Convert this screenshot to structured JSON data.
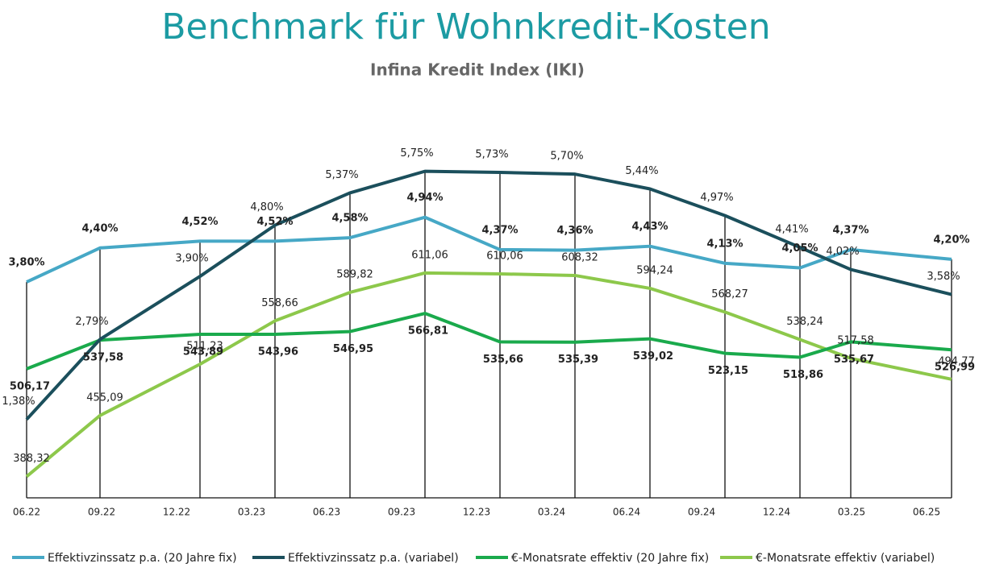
{
  "chart_data": {
    "type": "line",
    "title": "Benchmark für Wohnkredit-Kosten",
    "subtitle": "Infina Kredit Index (IKI)",
    "categories": [
      "06.22",
      "09.22",
      "12.22",
      "03.23",
      "06.23",
      "09.23",
      "12.23",
      "03.24",
      "06.24",
      "09.24",
      "12.24",
      "03.25",
      "06.25"
    ],
    "ylim": [
      0,
      7
    ],
    "y2lim": [
      365,
      800
    ],
    "series": [
      {
        "name": "Effektivzinssatz p.a. (20 Jahre fix)",
        "color": "#46a8c6",
        "axis": "y",
        "values": [
          3.8,
          4.4,
          4.52,
          4.52,
          4.58,
          4.94,
          4.37,
          4.36,
          4.43,
          4.13,
          4.05,
          4.37,
          4.2
        ],
        "value_labels": [
          "3,80%",
          "4,40%",
          "4,52%",
          "4,52%",
          "4,58%",
          "4,94%",
          "4,37%",
          "4,36%",
          "4,43%",
          "4,13%",
          "4,05%",
          "4,37%",
          "4,20%"
        ]
      },
      {
        "name": "Effektivzinssatz p.a. (variabel)",
        "color": "#1b4f5c",
        "axis": "y",
        "values": [
          1.38,
          2.79,
          3.9,
          4.8,
          5.37,
          5.75,
          5.73,
          5.7,
          5.44,
          4.97,
          4.41,
          4.02,
          3.58
        ],
        "value_labels": [
          "1,38%",
          "2,79%",
          "3,90%",
          "4,80%",
          "5,37%",
          "5,75%",
          "5,73%",
          "5,70%",
          "5,44%",
          "4,97%",
          "4,41%",
          "4,02%",
          "3,58%"
        ]
      },
      {
        "name": "€-Monatsrate effektiv (20 Jahre fix)",
        "color": "#1aaa4c",
        "axis": "y2",
        "values": [
          506.17,
          537.58,
          543.89,
          543.96,
          546.95,
          566.81,
          535.66,
          535.39,
          539.02,
          523.15,
          518.86,
          535.67,
          526.99
        ],
        "value_labels": [
          "506,17",
          "537,58",
          "543,89",
          "543,96",
          "546,95",
          "566,81",
          "535,66",
          "535,39",
          "539,02",
          "523,15",
          "518,86",
          "535,67",
          "526,99"
        ]
      },
      {
        "name": "€-Monatsrate effektiv (variabel)",
        "color": "#8dc84b",
        "axis": "y2",
        "values": [
          388.32,
          455.09,
          511.23,
          558.66,
          589.82,
          611.06,
          610.06,
          608.32,
          594.24,
          568.27,
          538.24,
          517.58,
          494.77
        ],
        "value_labels": [
          "388,32",
          "455,09",
          "511,23",
          "558,66",
          "589,82",
          "611,06",
          "610,06",
          "608,32",
          "594,24",
          "568,27",
          "538,24",
          "517,58",
          "494,77"
        ]
      }
    ]
  }
}
